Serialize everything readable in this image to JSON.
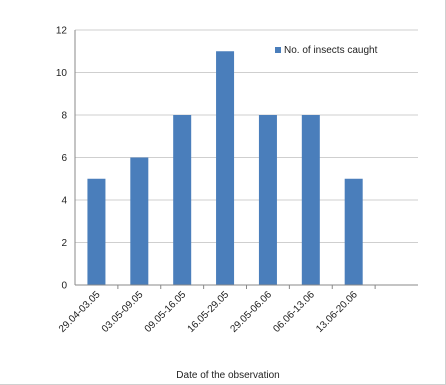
{
  "chart_data": {
    "type": "bar",
    "categories": [
      "29.04-03.05",
      "03.05-09.05",
      "09.05-16.05",
      "16.05-29.05",
      "29.05-06.06",
      "06.06-13.06",
      "13.06-20.06"
    ],
    "series": [
      {
        "name": "No. of insects caught",
        "values": [
          5,
          6,
          8,
          11,
          8,
          8,
          5
        ],
        "color": "#4a7ebb"
      }
    ],
    "title": "",
    "xlabel": "Date of the observation",
    "ylabel": "",
    "ylim": [
      0,
      12
    ],
    "yticks": [
      0,
      2,
      4,
      6,
      8,
      10,
      12
    ],
    "grid": true,
    "gridColor": "#cfcfcf",
    "axisColor": "#888888",
    "legend": "top-right"
  }
}
